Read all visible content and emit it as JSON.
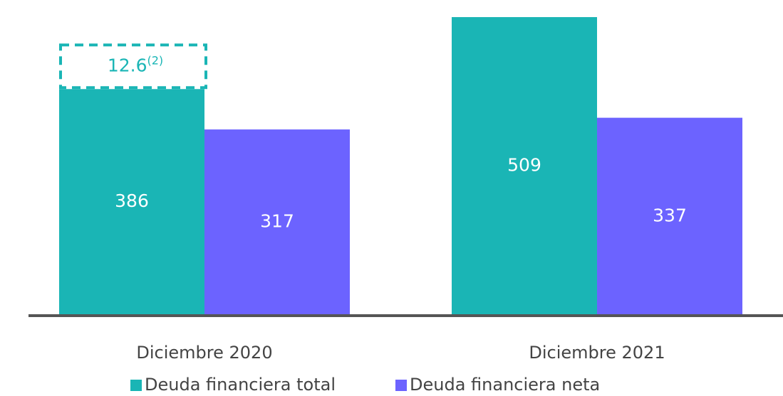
{
  "chart_data": {
    "type": "bar",
    "categories": [
      "Diciembre 2020",
      "Diciembre 2021"
    ],
    "series": [
      {
        "name": "Deuda financiera total",
        "color": "#1ab5b5",
        "values": [
          386,
          509
        ]
      },
      {
        "name": "Deuda financiera neta",
        "color": "#6c63ff",
        "values": [
          317,
          337
        ]
      }
    ],
    "ylim": [
      0,
      520
    ],
    "annotation": {
      "text": "12.6",
      "superscript": "(2)"
    },
    "legend": "bottom"
  }
}
